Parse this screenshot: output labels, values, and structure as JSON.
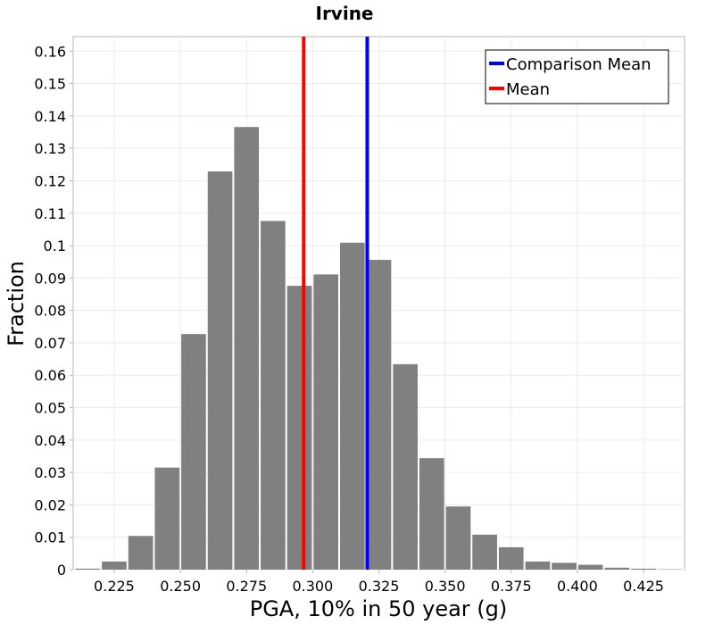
{
  "chart_data": {
    "type": "bar",
    "title": "Irvine",
    "xlabel": "PGA, 10% in 50 year (g)",
    "ylabel": "Fraction",
    "xlim": [
      0.2095,
      0.4405
    ],
    "ylim": [
      0,
      0.1645
    ],
    "bin_width": 0.01,
    "x": [
      0.215,
      0.225,
      0.235,
      0.245,
      0.255,
      0.265,
      0.275,
      0.285,
      0.295,
      0.305,
      0.315,
      0.325,
      0.335,
      0.345,
      0.355,
      0.365,
      0.375,
      0.385,
      0.395,
      0.405,
      0.415,
      0.425,
      0.435
    ],
    "values": [
      0.0003,
      0.0025,
      0.0104,
      0.0315,
      0.0727,
      0.1229,
      0.1366,
      0.1076,
      0.0876,
      0.0911,
      0.1009,
      0.0956,
      0.0634,
      0.0344,
      0.0195,
      0.0108,
      0.0069,
      0.0025,
      0.0021,
      0.0015,
      0.0006,
      0.0003,
      0.0001
    ],
    "xticks": [
      0.225,
      0.25,
      0.275,
      0.3,
      0.325,
      0.35,
      0.375,
      0.4,
      0.425
    ],
    "xtick_labels": [
      "0.225",
      "0.250",
      "0.275",
      "0.300",
      "0.325",
      "0.350",
      "0.375",
      "0.400",
      "0.425"
    ],
    "yticks": [
      0,
      0.01,
      0.02,
      0.03,
      0.04,
      0.05,
      0.06,
      0.07,
      0.08,
      0.09,
      0.1,
      0.11,
      0.12,
      0.13,
      0.14,
      0.15,
      0.16
    ],
    "ytick_labels": [
      "0",
      "0.01",
      "0.02",
      "0.03",
      "0.04",
      "0.05",
      "0.06",
      "0.07",
      "0.08",
      "0.09",
      "0.1",
      "0.11",
      "0.12",
      "0.13",
      "0.14",
      "0.15",
      "0.16"
    ],
    "vlines": [
      {
        "name": "Comparison Mean",
        "x": 0.3206,
        "color": "#0000ff"
      },
      {
        "name": "Mean",
        "x": 0.2966,
        "color": "#ff0000"
      }
    ],
    "legend": {
      "placement": "top-right",
      "entries": [
        {
          "label": "Comparison Mean",
          "color": "#0000ff"
        },
        {
          "label": "Mean",
          "color": "#ff0000"
        }
      ]
    },
    "grid": true,
    "colors": {
      "bar": "#808080",
      "grid": "#ebebeb",
      "axis": "#b4b4b4"
    }
  }
}
